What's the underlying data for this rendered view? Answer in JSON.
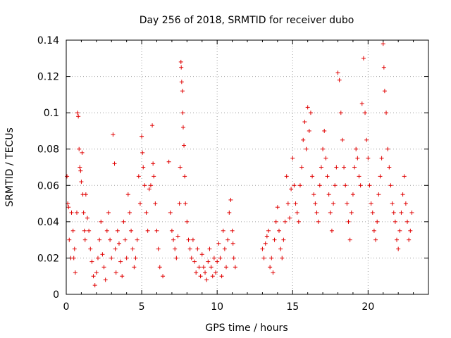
{
  "chart_data": {
    "type": "scatter",
    "title": "Day 256 of 2018, SRMTID for receiver dubo",
    "xlabel": "GPS time / hours",
    "ylabel": "SRMTID / TECUs",
    "xlim": [
      0,
      24
    ],
    "ylim": [
      0,
      0.14
    ],
    "xticks": [
      0,
      5,
      10,
      15,
      20
    ],
    "xtick_labels": [
      "0",
      "5",
      "10",
      "15",
      "20"
    ],
    "yticks": [
      0,
      0.02,
      0.04,
      0.06,
      0.08,
      0.1,
      0.12,
      0.14
    ],
    "ytick_labels": [
      "0",
      "0.02",
      "0.04",
      "0.06",
      "0.08",
      "0.1",
      "0.12",
      "0.14"
    ],
    "grid": true,
    "marker": "+",
    "color": "#e00000",
    "series": [
      {
        "name": "SRMTID",
        "points": [
          [
            0.05,
            0.065
          ],
          [
            0.1,
            0.05
          ],
          [
            0.15,
            0.048
          ],
          [
            0.2,
            0.03
          ],
          [
            0.3,
            0.02
          ],
          [
            0.35,
            0.045
          ],
          [
            0.45,
            0.035
          ],
          [
            0.5,
            0.02
          ],
          [
            0.55,
            0.025
          ],
          [
            0.6,
            0.012
          ],
          [
            0.7,
            0.045
          ],
          [
            0.75,
            0.1
          ],
          [
            0.8,
            0.098
          ],
          [
            0.85,
            0.08
          ],
          [
            0.9,
            0.07
          ],
          [
            0.95,
            0.068
          ],
          [
            1.0,
            0.062
          ],
          [
            1.05,
            0.078
          ],
          [
            1.1,
            0.055
          ],
          [
            1.15,
            0.045
          ],
          [
            1.2,
            0.035
          ],
          [
            1.25,
            0.03
          ],
          [
            1.3,
            0.055
          ],
          [
            1.4,
            0.042
          ],
          [
            1.5,
            0.035
          ],
          [
            1.6,
            0.025
          ],
          [
            1.7,
            0.018
          ],
          [
            1.8,
            0.01
          ],
          [
            1.9,
            0.005
          ],
          [
            2.0,
            0.012
          ],
          [
            2.1,
            0.02
          ],
          [
            2.2,
            0.03
          ],
          [
            2.3,
            0.04
          ],
          [
            2.4,
            0.022
          ],
          [
            2.5,
            0.015
          ],
          [
            2.6,
            0.008
          ],
          [
            2.7,
            0.035
          ],
          [
            2.8,
            0.045
          ],
          [
            2.9,
            0.03
          ],
          [
            3.0,
            0.02
          ],
          [
            3.1,
            0.088
          ],
          [
            3.2,
            0.072
          ],
          [
            3.25,
            0.025
          ],
          [
            3.3,
            0.012
          ],
          [
            3.4,
            0.035
          ],
          [
            3.5,
            0.028
          ],
          [
            3.6,
            0.018
          ],
          [
            3.7,
            0.01
          ],
          [
            3.8,
            0.04
          ],
          [
            3.9,
            0.03
          ],
          [
            4.0,
            0.02
          ],
          [
            4.1,
            0.055
          ],
          [
            4.2,
            0.045
          ],
          [
            4.3,
            0.035
          ],
          [
            4.4,
            0.025
          ],
          [
            4.5,
            0.015
          ],
          [
            4.6,
            0.02
          ],
          [
            4.7,
            0.03
          ],
          [
            4.8,
            0.065
          ],
          [
            4.9,
            0.05
          ],
          [
            5.0,
            0.087
          ],
          [
            5.05,
            0.078
          ],
          [
            5.1,
            0.07
          ],
          [
            5.2,
            0.06
          ],
          [
            5.3,
            0.045
          ],
          [
            5.4,
            0.035
          ],
          [
            5.5,
            0.058
          ],
          [
            5.6,
            0.06
          ],
          [
            5.7,
            0.093
          ],
          [
            5.75,
            0.072
          ],
          [
            5.8,
            0.065
          ],
          [
            5.9,
            0.05
          ],
          [
            6.0,
            0.035
          ],
          [
            6.1,
            0.025
          ],
          [
            6.2,
            0.015
          ],
          [
            6.4,
            0.01
          ],
          [
            6.8,
            0.073
          ],
          [
            6.9,
            0.045
          ],
          [
            7.0,
            0.035
          ],
          [
            7.1,
            0.03
          ],
          [
            7.2,
            0.025
          ],
          [
            7.3,
            0.02
          ],
          [
            7.4,
            0.032
          ],
          [
            7.5,
            0.05
          ],
          [
            7.55,
            0.07
          ],
          [
            7.6,
            0.128
          ],
          [
            7.62,
            0.125
          ],
          [
            7.65,
            0.117
          ],
          [
            7.7,
            0.112
          ],
          [
            7.72,
            0.1
          ],
          [
            7.75,
            0.092
          ],
          [
            7.8,
            0.082
          ],
          [
            7.85,
            0.065
          ],
          [
            7.9,
            0.05
          ],
          [
            8.0,
            0.04
          ],
          [
            8.1,
            0.03
          ],
          [
            8.2,
            0.025
          ],
          [
            8.3,
            0.02
          ],
          [
            8.4,
            0.03
          ],
          [
            8.5,
            0.018
          ],
          [
            8.6,
            0.012
          ],
          [
            8.7,
            0.025
          ],
          [
            8.8,
            0.015
          ],
          [
            8.9,
            0.01
          ],
          [
            9.0,
            0.022
          ],
          [
            9.1,
            0.015
          ],
          [
            9.2,
            0.012
          ],
          [
            9.3,
            0.008
          ],
          [
            9.4,
            0.018
          ],
          [
            9.5,
            0.025
          ],
          [
            9.6,
            0.015
          ],
          [
            9.7,
            0.01
          ],
          [
            9.8,
            0.02
          ],
          [
            9.9,
            0.012
          ],
          [
            10.0,
            0.018
          ],
          [
            10.1,
            0.028
          ],
          [
            10.2,
            0.02
          ],
          [
            10.3,
            0.01
          ],
          [
            10.4,
            0.035
          ],
          [
            10.5,
            0.025
          ],
          [
            10.6,
            0.015
          ],
          [
            10.7,
            0.03
          ],
          [
            10.8,
            0.045
          ],
          [
            10.9,
            0.052
          ],
          [
            11.0,
            0.035
          ],
          [
            11.05,
            0.028
          ],
          [
            11.1,
            0.02
          ],
          [
            11.2,
            0.015
          ],
          [
            13.0,
            0.025
          ],
          [
            13.1,
            0.02
          ],
          [
            13.2,
            0.028
          ],
          [
            13.3,
            0.032
          ],
          [
            13.4,
            0.035
          ],
          [
            13.5,
            0.015
          ],
          [
            13.6,
            0.02
          ],
          [
            13.7,
            0.012
          ],
          [
            13.8,
            0.03
          ],
          [
            13.9,
            0.04
          ],
          [
            14.0,
            0.048
          ],
          [
            14.1,
            0.035
          ],
          [
            14.2,
            0.025
          ],
          [
            14.3,
            0.02
          ],
          [
            14.4,
            0.03
          ],
          [
            14.5,
            0.04
          ],
          [
            14.6,
            0.065
          ],
          [
            14.7,
            0.05
          ],
          [
            14.8,
            0.042
          ],
          [
            14.9,
            0.058
          ],
          [
            15.0,
            0.075
          ],
          [
            15.1,
            0.06
          ],
          [
            15.2,
            0.05
          ],
          [
            15.3,
            0.045
          ],
          [
            15.4,
            0.04
          ],
          [
            15.5,
            0.06
          ],
          [
            15.6,
            0.07
          ],
          [
            15.7,
            0.085
          ],
          [
            15.8,
            0.095
          ],
          [
            15.9,
            0.08
          ],
          [
            16.0,
            0.103
          ],
          [
            16.1,
            0.09
          ],
          [
            16.2,
            0.1
          ],
          [
            16.3,
            0.065
          ],
          [
            16.4,
            0.055
          ],
          [
            16.5,
            0.05
          ],
          [
            16.6,
            0.045
          ],
          [
            16.7,
            0.04
          ],
          [
            16.8,
            0.06
          ],
          [
            16.9,
            0.07
          ],
          [
            17.0,
            0.08
          ],
          [
            17.1,
            0.09
          ],
          [
            17.2,
            0.075
          ],
          [
            17.3,
            0.065
          ],
          [
            17.4,
            0.055
          ],
          [
            17.5,
            0.045
          ],
          [
            17.6,
            0.035
          ],
          [
            17.7,
            0.05
          ],
          [
            17.8,
            0.06
          ],
          [
            17.9,
            0.07
          ],
          [
            18.0,
            0.122
          ],
          [
            18.1,
            0.118
          ],
          [
            18.2,
            0.1
          ],
          [
            18.3,
            0.085
          ],
          [
            18.4,
            0.07
          ],
          [
            18.5,
            0.06
          ],
          [
            18.6,
            0.05
          ],
          [
            18.7,
            0.04
          ],
          [
            18.8,
            0.03
          ],
          [
            18.9,
            0.045
          ],
          [
            19.0,
            0.055
          ],
          [
            19.1,
            0.07
          ],
          [
            19.2,
            0.08
          ],
          [
            19.3,
            0.075
          ],
          [
            19.4,
            0.065
          ],
          [
            19.5,
            0.06
          ],
          [
            19.6,
            0.105
          ],
          [
            19.7,
            0.13
          ],
          [
            19.8,
            0.1
          ],
          [
            19.9,
            0.085
          ],
          [
            20.0,
            0.075
          ],
          [
            20.1,
            0.06
          ],
          [
            20.2,
            0.05
          ],
          [
            20.3,
            0.045
          ],
          [
            20.4,
            0.035
          ],
          [
            20.5,
            0.03
          ],
          [
            20.6,
            0.04
          ],
          [
            20.7,
            0.055
          ],
          [
            20.8,
            0.065
          ],
          [
            20.9,
            0.075
          ],
          [
            21.0,
            0.138
          ],
          [
            21.05,
            0.125
          ],
          [
            21.1,
            0.112
          ],
          [
            21.2,
            0.1
          ],
          [
            21.3,
            0.08
          ],
          [
            21.4,
            0.07
          ],
          [
            21.5,
            0.06
          ],
          [
            21.6,
            0.05
          ],
          [
            21.7,
            0.045
          ],
          [
            21.8,
            0.04
          ],
          [
            21.9,
            0.03
          ],
          [
            22.0,
            0.025
          ],
          [
            22.1,
            0.035
          ],
          [
            22.2,
            0.045
          ],
          [
            22.3,
            0.055
          ],
          [
            22.4,
            0.065
          ],
          [
            22.5,
            0.05
          ],
          [
            22.6,
            0.04
          ],
          [
            22.7,
            0.03
          ],
          [
            22.8,
            0.035
          ],
          [
            22.9,
            0.045
          ]
        ]
      }
    ]
  }
}
